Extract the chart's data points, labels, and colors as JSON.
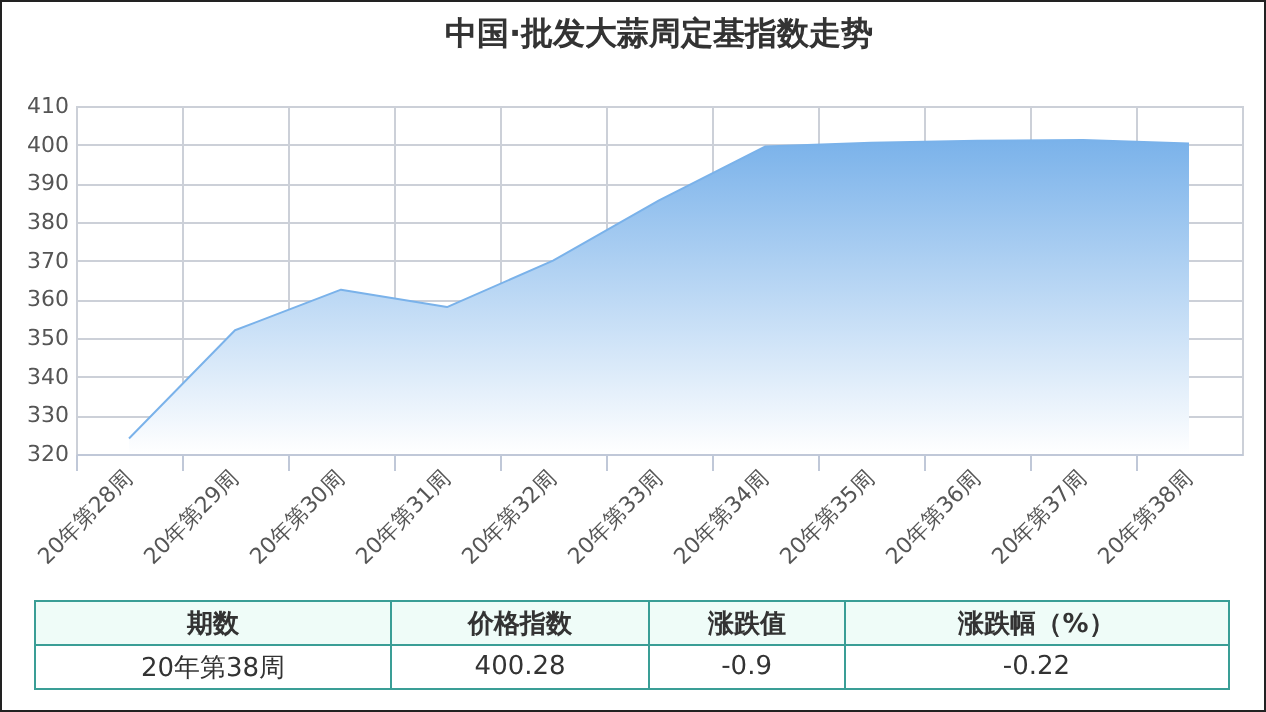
{
  "chart_data": {
    "type": "area",
    "title": "中国·批发大蒜周定基指数走势",
    "categories": [
      "20年第28周",
      "20年第29周",
      "20年第30周",
      "20年第31周",
      "20年第32周",
      "20年第33周",
      "20年第34周",
      "20年第35周",
      "20年第36周",
      "20年第37周",
      "20年第38周"
    ],
    "series": [
      {
        "color": "#7ab2ea",
        "values": [
          324,
          352,
          362.5,
          358,
          370,
          385.6,
          399.5,
          400.5,
          401,
          401.2,
          400.3
        ]
      }
    ],
    "ylim": [
      320,
      410
    ],
    "yticks": [
      320,
      330,
      340,
      350,
      360,
      370,
      380,
      390,
      400,
      410
    ],
    "grid": true,
    "annotations": [
      "期数",
      "价格指数",
      "涨跌值",
      "涨跌幅（%）",
      "20年第38周",
      "400.28",
      "-0.9",
      "-0.22"
    ]
  }
}
